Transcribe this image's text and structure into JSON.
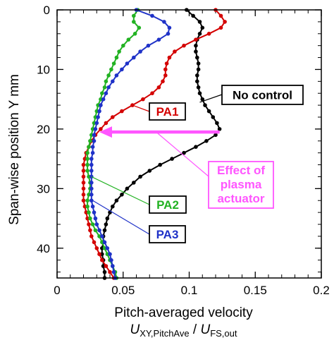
{
  "chart_data": {
    "type": "scatter",
    "title": "",
    "xlabel": "Pitch-averaged velocity",
    "xlabel_symbol": {
      "main1": "U",
      "sub1": "XY,PitchAve",
      "sep": " / ",
      "main2": "U",
      "sub2": "FS,out"
    },
    "ylabel": "Span-wise position Y mm",
    "xlim": [
      0,
      0.2
    ],
    "ylim": [
      45,
      0
    ],
    "y_inverted": true,
    "xticks": [
      0,
      0.05,
      0.1,
      0.15,
      0.2
    ],
    "xtick_labels": [
      "0",
      "0.05",
      "0.1",
      "0.15",
      "0.2"
    ],
    "yticks": [
      0,
      10,
      20,
      30,
      40
    ],
    "ytick_labels": [
      "0",
      "10",
      "20",
      "30",
      "40"
    ],
    "grid": false,
    "series": [
      {
        "name": "No control",
        "color": "#000000",
        "x": [
          0.098,
          0.103,
          0.108,
          0.11,
          0.108,
          0.106,
          0.105,
          0.105,
          0.106,
          0.107,
          0.107,
          0.106,
          0.106,
          0.107,
          0.108,
          0.11,
          0.112,
          0.115,
          0.118,
          0.121,
          0.123,
          0.12,
          0.113,
          0.105,
          0.096,
          0.087,
          0.078,
          0.07,
          0.063,
          0.058,
          0.053,
          0.049,
          0.045,
          0.042,
          0.04,
          0.038,
          0.037,
          0.036,
          0.035,
          0.035,
          0.034,
          0.034,
          0.035,
          0.035,
          0.036,
          0.036
        ],
        "y": [
          0,
          1,
          2,
          3,
          4,
          5,
          6,
          7,
          8,
          9,
          10,
          11,
          12,
          13,
          14,
          15,
          16,
          17,
          18,
          19,
          20,
          21,
          22,
          23,
          24,
          25,
          26,
          27,
          28,
          29,
          30,
          31,
          32,
          33,
          34,
          35,
          36,
          37,
          38,
          39,
          40,
          41,
          42,
          43,
          44,
          45
        ]
      },
      {
        "name": "PA1",
        "color": "#d40000",
        "x": [
          0.12,
          0.124,
          0.127,
          0.124,
          0.115,
          0.105,
          0.096,
          0.089,
          0.085,
          0.083,
          0.082,
          0.082,
          0.08,
          0.077,
          0.072,
          0.065,
          0.057,
          0.049,
          0.042,
          0.037,
          0.033,
          0.029,
          0.026,
          0.024,
          0.022,
          0.021,
          0.02,
          0.02,
          0.02,
          0.02,
          0.02,
          0.02,
          0.02,
          0.021,
          0.022,
          0.023,
          0.024,
          0.025,
          0.026,
          0.028,
          0.03,
          0.032,
          0.034,
          0.037,
          0.04,
          0.043
        ],
        "y": [
          0,
          1,
          2,
          3,
          4,
          5,
          6,
          7,
          8,
          9,
          10,
          11,
          12,
          13,
          14,
          15,
          16,
          17,
          18,
          19,
          20,
          21,
          22,
          23,
          24,
          25,
          26,
          27,
          28,
          29,
          30,
          31,
          32,
          33,
          34,
          35,
          36,
          37,
          38,
          39,
          40,
          41,
          42,
          43,
          44,
          45
        ]
      },
      {
        "name": "PA2",
        "color": "#22b222",
        "x": [
          0.061,
          0.058,
          0.058,
          0.062,
          0.059,
          0.054,
          0.05,
          0.047,
          0.045,
          0.043,
          0.041,
          0.039,
          0.037,
          0.036,
          0.034,
          0.033,
          0.031,
          0.03,
          0.029,
          0.028,
          0.027,
          0.026,
          0.025,
          0.024,
          0.023,
          0.023,
          0.023,
          0.023,
          0.024,
          0.025,
          0.025,
          0.024,
          0.023,
          0.023,
          0.024,
          0.025,
          0.027,
          0.029,
          0.032,
          0.034,
          0.036,
          0.038,
          0.04,
          0.042,
          0.044,
          0.045
        ],
        "y": [
          0,
          1,
          2,
          3,
          4,
          5,
          6,
          7,
          8,
          9,
          10,
          11,
          12,
          13,
          14,
          15,
          16,
          17,
          18,
          19,
          20,
          21,
          22,
          23,
          24,
          25,
          26,
          27,
          28,
          29,
          30,
          31,
          32,
          33,
          34,
          35,
          36,
          37,
          38,
          39,
          40,
          41,
          42,
          43,
          44,
          45
        ]
      },
      {
        "name": "PA3",
        "color": "#1f32c8",
        "x": [
          0.06,
          0.072,
          0.081,
          0.085,
          0.084,
          0.077,
          0.069,
          0.063,
          0.058,
          0.053,
          0.049,
          0.045,
          0.042,
          0.039,
          0.037,
          0.035,
          0.033,
          0.032,
          0.031,
          0.03,
          0.029,
          0.028,
          0.028,
          0.027,
          0.027,
          0.026,
          0.026,
          0.026,
          0.026,
          0.026,
          0.026,
          0.026,
          0.026,
          0.027,
          0.028,
          0.029,
          0.03,
          0.032,
          0.034,
          0.036,
          0.038,
          0.04,
          0.041,
          0.042,
          0.043,
          0.044
        ],
        "y": [
          0,
          1,
          2,
          3,
          4,
          5,
          6,
          7,
          8,
          9,
          10,
          11,
          12,
          13,
          14,
          15,
          16,
          17,
          18,
          19,
          20,
          21,
          22,
          23,
          24,
          25,
          26,
          27,
          28,
          29,
          30,
          31,
          32,
          33,
          34,
          35,
          36,
          37,
          38,
          39,
          40,
          41,
          42,
          43,
          44,
          45
        ]
      }
    ],
    "annotations": [
      {
        "text": "No control",
        "color": "#000000",
        "border": "#000000",
        "target": {
          "x": 0.108,
          "y": 15.5
        }
      },
      {
        "text": "PA1",
        "color": "#d40000",
        "border": "#000000",
        "target": {
          "x": 0.057,
          "y": 16
        }
      },
      {
        "text": "PA2",
        "color": "#22b222",
        "border": "#000000",
        "target": {
          "x": 0.026,
          "y": 28
        }
      },
      {
        "text": "PA3",
        "color": "#1f32c8",
        "border": "#000000",
        "target": {
          "x": 0.027,
          "y": 32
        }
      },
      {
        "text": "Effect of\nplasma\nactuator",
        "color": "#ff55ff",
        "border": "#ff55ff",
        "target": {
          "x": 0.075,
          "y": 20.5
        }
      }
    ],
    "effect_arrow": {
      "color": "#ff55ff",
      "from": {
        "x": 0.123,
        "y": 20.5
      },
      "to": {
        "x": 0.032,
        "y": 20.5
      }
    }
  }
}
